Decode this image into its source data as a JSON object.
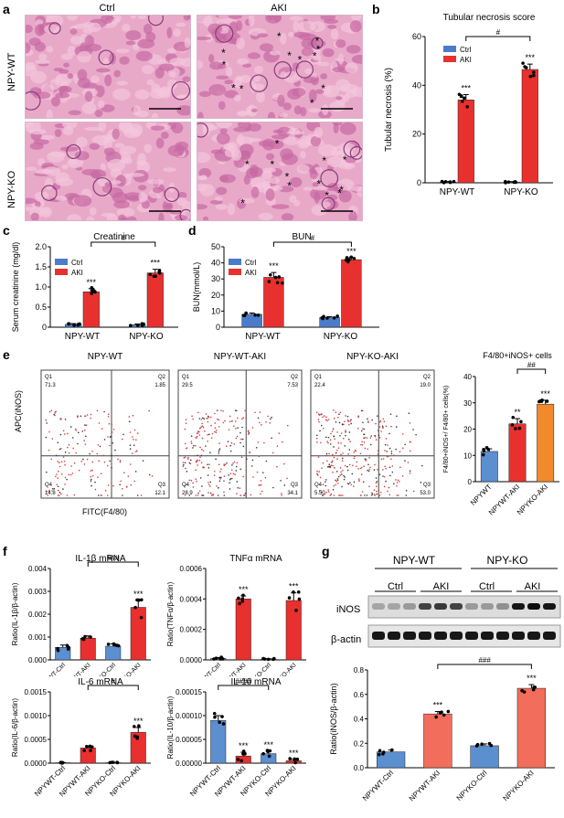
{
  "panels": {
    "a": {
      "label": "a",
      "col_titles": [
        "Ctrl",
        "AKI"
      ],
      "row_titles": [
        "NPY-WT",
        "NPY-KO"
      ]
    },
    "b": {
      "label": "b"
    },
    "c": {
      "label": "c"
    },
    "d": {
      "label": "d"
    },
    "e": {
      "label": "e",
      "flow_titles": [
        "NPY-WT",
        "NPY-WT-AKI",
        "NPY-KO-AKI"
      ],
      "flow_ylabel": "APC(iNOS)",
      "flow_xlabel": "FITC(F4/80)",
      "quadrants": [
        {
          "q1": "Q1\n71.3",
          "q2": "Q2\n1.85",
          "q3": "Q3\n12.1",
          "q4": "Q4\n14.8"
        },
        {
          "q1": "Q1\n29.5",
          "q2": "Q2\n7.53",
          "q3": "Q3\n34.1",
          "q4": "Q4\n28.9"
        },
        {
          "q1": "Q1\n22.4",
          "q2": "Q2\n19.0",
          "q3": "Q3\n53.0",
          "q4": "Q4\n5.50"
        }
      ]
    },
    "f": {
      "label": "f"
    },
    "g": {
      "label": "g",
      "groups": [
        "NPY-WT",
        "NPY-KO"
      ],
      "conds": [
        "Ctrl",
        "AKI",
        "Ctrl",
        "AKI"
      ],
      "bands": [
        "iNOS",
        "β-actin"
      ]
    }
  },
  "colors": {
    "ctrl": "#4a7cc9",
    "aki": "#e8312f",
    "orange": "#f08a2c",
    "salmon": "#f26d5b",
    "bluebar": "#5b8fd0"
  },
  "chart_data": [
    {
      "id": "b",
      "type": "bar",
      "title": "Tubular necrosis score",
      "ylabel": "Tubular necrosis (%)",
      "xlabel": "",
      "categories": [
        "NPY-WT",
        "NPY-KO"
      ],
      "series": [
        {
          "name": "Ctrl",
          "values": [
            0.3,
            0.3
          ]
        },
        {
          "name": "AKI",
          "values": [
            34,
            46.5
          ]
        }
      ],
      "errors": [
        [
          0.2,
          0.2
        ],
        [
          2.2,
          2.2
        ]
      ],
      "ylim": [
        0,
        60
      ],
      "yticks": [
        "0",
        "20",
        "40",
        "60"
      ],
      "sig": [
        "***",
        "***"
      ],
      "bracket": "#"
    },
    {
      "id": "c",
      "type": "bar",
      "title": "Creatinine",
      "ylabel": "Serum creatinine (mg/dl)",
      "categories": [
        "NPY-WT",
        "NPY-KO"
      ],
      "series": [
        {
          "name": "Ctrl",
          "values": [
            0.07,
            0.06
          ]
        },
        {
          "name": "AKI",
          "values": [
            0.88,
            1.35
          ]
        }
      ],
      "errors": [
        [
          0.02,
          0.02
        ],
        [
          0.08,
          0.09
        ]
      ],
      "ylim": [
        0,
        2
      ],
      "yticks": [
        "0",
        "0.5",
        "1.0",
        "1.5",
        "2.0"
      ],
      "sig": [
        "***",
        "***"
      ],
      "bracket": "#"
    },
    {
      "id": "d",
      "type": "bar",
      "title": "BUN",
      "ylabel": "BUN(mmol/L)",
      "categories": [
        "NPY-WT",
        "NPY-KO"
      ],
      "series": [
        {
          "name": "Ctrl",
          "values": [
            8,
            6
          ]
        },
        {
          "name": "AKI",
          "values": [
            31,
            42
          ]
        }
      ],
      "errors": [
        [
          0.8,
          0.6
        ],
        [
          3,
          1.2
        ]
      ],
      "ylim": [
        0,
        50
      ],
      "yticks": [
        "0",
        "10",
        "20",
        "30",
        "40",
        "50"
      ],
      "sig": [
        "***",
        "***"
      ],
      "bracket": "#"
    },
    {
      "id": "e2",
      "type": "bar",
      "title": "F4/80+iNOS+ cells",
      "ylabel": "F4/80+iNOS+/ F4/80+ cells(%)",
      "categories": [
        "NPYWT",
        "NPYWT-AKI",
        "NPYKO-AKI"
      ],
      "values": [
        11.5,
        22,
        29.5
      ],
      "errors": [
        1,
        2,
        1.5
      ],
      "ylim": [
        0,
        40
      ],
      "yticks": [
        "0",
        "10",
        "20",
        "30",
        "40"
      ],
      "sig": [
        "",
        "**",
        "***"
      ],
      "bracket": "##"
    },
    {
      "id": "f1",
      "type": "bar",
      "title": "IL-1β mRNA",
      "ylabel": "Ratio(IL-1β/β-actin)",
      "categories": [
        "NPYWT-Ctrl",
        "NPYWT-AKI",
        "NPYKO-Ctrl",
        "NPYKO-AKI"
      ],
      "values": [
        0.00055,
        0.00095,
        0.0006,
        0.0023
      ],
      "errors": [
        0.0001,
        0.0001,
        0.0001,
        0.0003
      ],
      "ylim": [
        0,
        0.004
      ],
      "yticks": [
        "0.000",
        "0.001",
        "0.002",
        "0.003",
        "0.004"
      ],
      "sig": [
        "",
        "",
        "",
        "***"
      ],
      "bracket": "###"
    },
    {
      "id": "f2",
      "type": "bar",
      "title": "TNFα mRNA",
      "ylabel": "Ratio(TNFα/β-actin)",
      "categories": [
        "NPYWT-Ctrl",
        "NPYWT-AKI",
        "NPYKO-Ctrl",
        "NPYKO-AKI"
      ],
      "values": [
        1e-05,
        0.0004,
        5e-06,
        0.00039
      ],
      "errors": [
        5e-06,
        2e-05,
        3e-06,
        5e-05
      ],
      "ylim": [
        0,
        0.0006
      ],
      "yticks": [
        "0.0000",
        "0.0002",
        "0.0004",
        "0.0006"
      ],
      "sig": [
        "",
        "***",
        "",
        "***"
      ],
      "bracket": ""
    },
    {
      "id": "f3",
      "type": "bar",
      "title": "IL-6 mRNA",
      "ylabel": "Ratio(IL-6/β-actin)",
      "categories": [
        "NPYWT-Ctrl",
        "NPYWT-AKI",
        "NPYKO-Ctrl",
        "NPYKO-AKI"
      ],
      "values": [
        1e-05,
        0.00032,
        1e-05,
        0.00065
      ],
      "errors": [
        5e-06,
        4e-05,
        5e-06,
        0.0001
      ],
      "ylim": [
        0,
        0.0015
      ],
      "yticks": [
        "0.0000",
        "0.0005",
        "0.0010",
        "0.0015"
      ],
      "sig": [
        "",
        "",
        "",
        "***"
      ],
      "bracket": "#"
    },
    {
      "id": "f4",
      "type": "bar",
      "title": "IL-10 mRNA",
      "ylabel": "Ratio(IL-10/β-actin)",
      "categories": [
        "NPYWT-Ctrl",
        "NPYWT-AKI",
        "NPYKO-Ctrl",
        "NPYKO-AKI"
      ],
      "values": [
        9e-05,
        1.5e-05,
        2e-05,
        5e-06
      ],
      "errors": [
        1e-05,
        8e-06,
        5e-06,
        3e-06
      ],
      "ylim": [
        0,
        0.00015
      ],
      "yticks": [
        "0.00000",
        "0.00005",
        "0.00010",
        "0.00015"
      ],
      "sig": [
        "",
        "***",
        "***",
        "***"
      ],
      "bracket": "####"
    },
    {
      "id": "g2",
      "type": "bar",
      "title": "",
      "ylabel": "Ratio(iNOS/β-actin)",
      "categories": [
        "NPYWT-Ctrl",
        "NPYWT-AKI",
        "NPYKO-Ctrl",
        "NPYKO-AKI"
      ],
      "values": [
        0.13,
        0.44,
        0.18,
        0.65
      ],
      "errors": [
        0.015,
        0.02,
        0.015,
        0.03
      ],
      "ylim": [
        0,
        0.8
      ],
      "yticks": [
        "0.0",
        "0.2",
        "0.4",
        "0.6",
        "0.8"
      ],
      "sig": [
        "",
        "***",
        "",
        "***"
      ],
      "bracket": "###"
    }
  ]
}
